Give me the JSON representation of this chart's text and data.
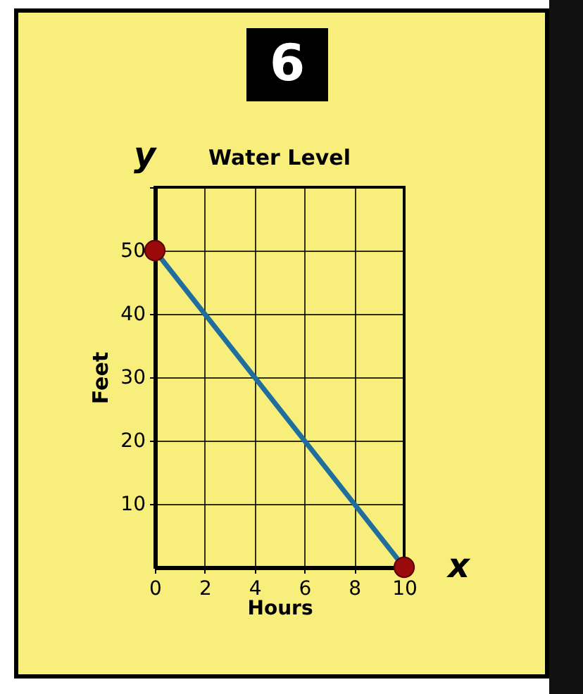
{
  "chart_data": {
    "type": "line",
    "title": "Water Level",
    "xlabel": "Hours",
    "ylabel": "Feet",
    "annotations": [
      "6",
      "y",
      "x"
    ],
    "x": [
      0,
      10
    ],
    "series": [
      {
        "color": "#1f6e9e",
        "values": [
          50,
          0
        ]
      }
    ],
    "marker": "circle",
    "grid": true,
    "xlim": [
      0,
      10
    ],
    "xticks": [
      0,
      2,
      4,
      6,
      8,
      10
    ],
    "ylim": [
      0,
      60
    ],
    "yticks": [
      10,
      20,
      30,
      40,
      50,
      {
        "value": 60,
        "label": null
      }
    ]
  }
}
